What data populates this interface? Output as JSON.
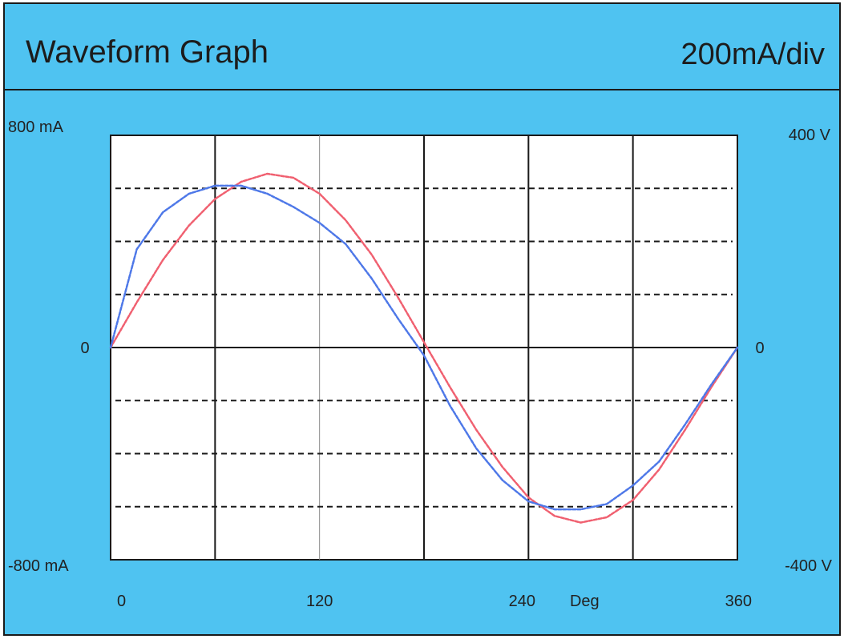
{
  "header": {
    "title": "Waveform Graph",
    "scale": "200mA/div"
  },
  "colors": {
    "background": "#4fc3f1",
    "plot_background": "#ffffff",
    "grid": "#1a1a1a",
    "current_series": "#f06070",
    "voltage_series": "#4e78e8"
  },
  "chart_data": {
    "type": "line",
    "title": "Waveform Graph",
    "scale_label": "200mA/div",
    "xlabel": "Deg",
    "xlim": [
      0,
      360
    ],
    "x_ticks": [
      "0",
      "120",
      "240",
      "360"
    ],
    "left_axis": {
      "top": "800 mA",
      "zero": "0",
      "bottom": "-800 mA",
      "ylim": [
        -800,
        800
      ]
    },
    "right_axis": {
      "top": "400 V",
      "zero": "0",
      "bottom": "-400 V",
      "ylim": [
        -400,
        400
      ]
    },
    "grid": true,
    "series": [
      {
        "color": "#f06070",
        "axis": "left",
        "x": [
          0,
          15,
          30,
          45,
          60,
          75,
          90,
          105,
          120,
          135,
          150,
          165,
          180,
          195,
          210,
          225,
          240,
          255,
          270,
          285,
          300,
          315,
          330,
          345,
          360
        ],
        "values": [
          0,
          170,
          330,
          460,
          560,
          625,
          655,
          640,
          580,
          480,
          350,
          190,
          20,
          -150,
          -310,
          -450,
          -565,
          -635,
          -660,
          -640,
          -575,
          -460,
          -310,
          -150,
          0
        ]
      },
      {
        "color": "#4e78e8",
        "axis": "right",
        "x": [
          0,
          15,
          30,
          45,
          60,
          75,
          90,
          105,
          120,
          135,
          150,
          165,
          180,
          195,
          210,
          225,
          240,
          255,
          270,
          285,
          300,
          315,
          330,
          345,
          360
        ],
        "values": [
          0,
          185,
          255,
          290,
          305,
          305,
          290,
          265,
          235,
          195,
          130,
          55,
          -15,
          -110,
          -190,
          -250,
          -290,
          -305,
          -305,
          -295,
          -260,
          -215,
          -145,
          -70,
          0
        ]
      }
    ]
  }
}
